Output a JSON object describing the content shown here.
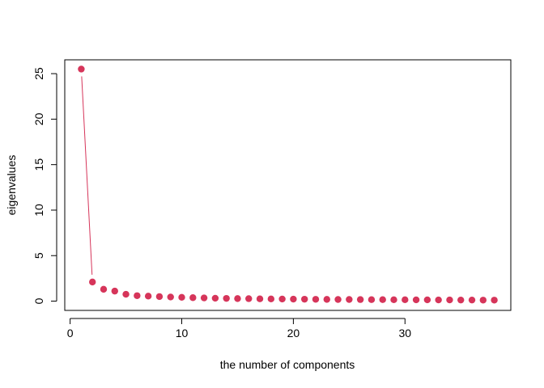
{
  "chart_data": {
    "type": "scatter",
    "title": "",
    "xlabel": "the number of components",
    "ylabel": "eigenvalues",
    "xlim": [
      -0.48,
      39.48
    ],
    "ylim": [
      -1.02,
      26.52
    ],
    "xticks": [
      0,
      10,
      20,
      30
    ],
    "yticks": [
      0,
      5,
      10,
      15,
      20,
      25
    ],
    "grid": false,
    "legend": "none",
    "color": "#d6355a",
    "x": [
      1,
      2,
      3,
      4,
      5,
      6,
      7,
      8,
      9,
      10,
      11,
      12,
      13,
      14,
      15,
      16,
      17,
      18,
      19,
      20,
      21,
      22,
      23,
      24,
      25,
      26,
      27,
      28,
      29,
      30,
      31,
      32,
      33,
      34,
      35,
      36,
      37,
      38
    ],
    "y": [
      25.5,
      2.1,
      1.3,
      1.1,
      0.75,
      0.6,
      0.55,
      0.5,
      0.45,
      0.42,
      0.38,
      0.35,
      0.32,
      0.3,
      0.28,
      0.27,
      0.25,
      0.24,
      0.23,
      0.22,
      0.21,
      0.2,
      0.19,
      0.18,
      0.18,
      0.17,
      0.16,
      0.16,
      0.15,
      0.15,
      0.14,
      0.14,
      0.13,
      0.13,
      0.12,
      0.12,
      0.11,
      0.11
    ],
    "connected_segment": [
      1,
      2
    ]
  }
}
